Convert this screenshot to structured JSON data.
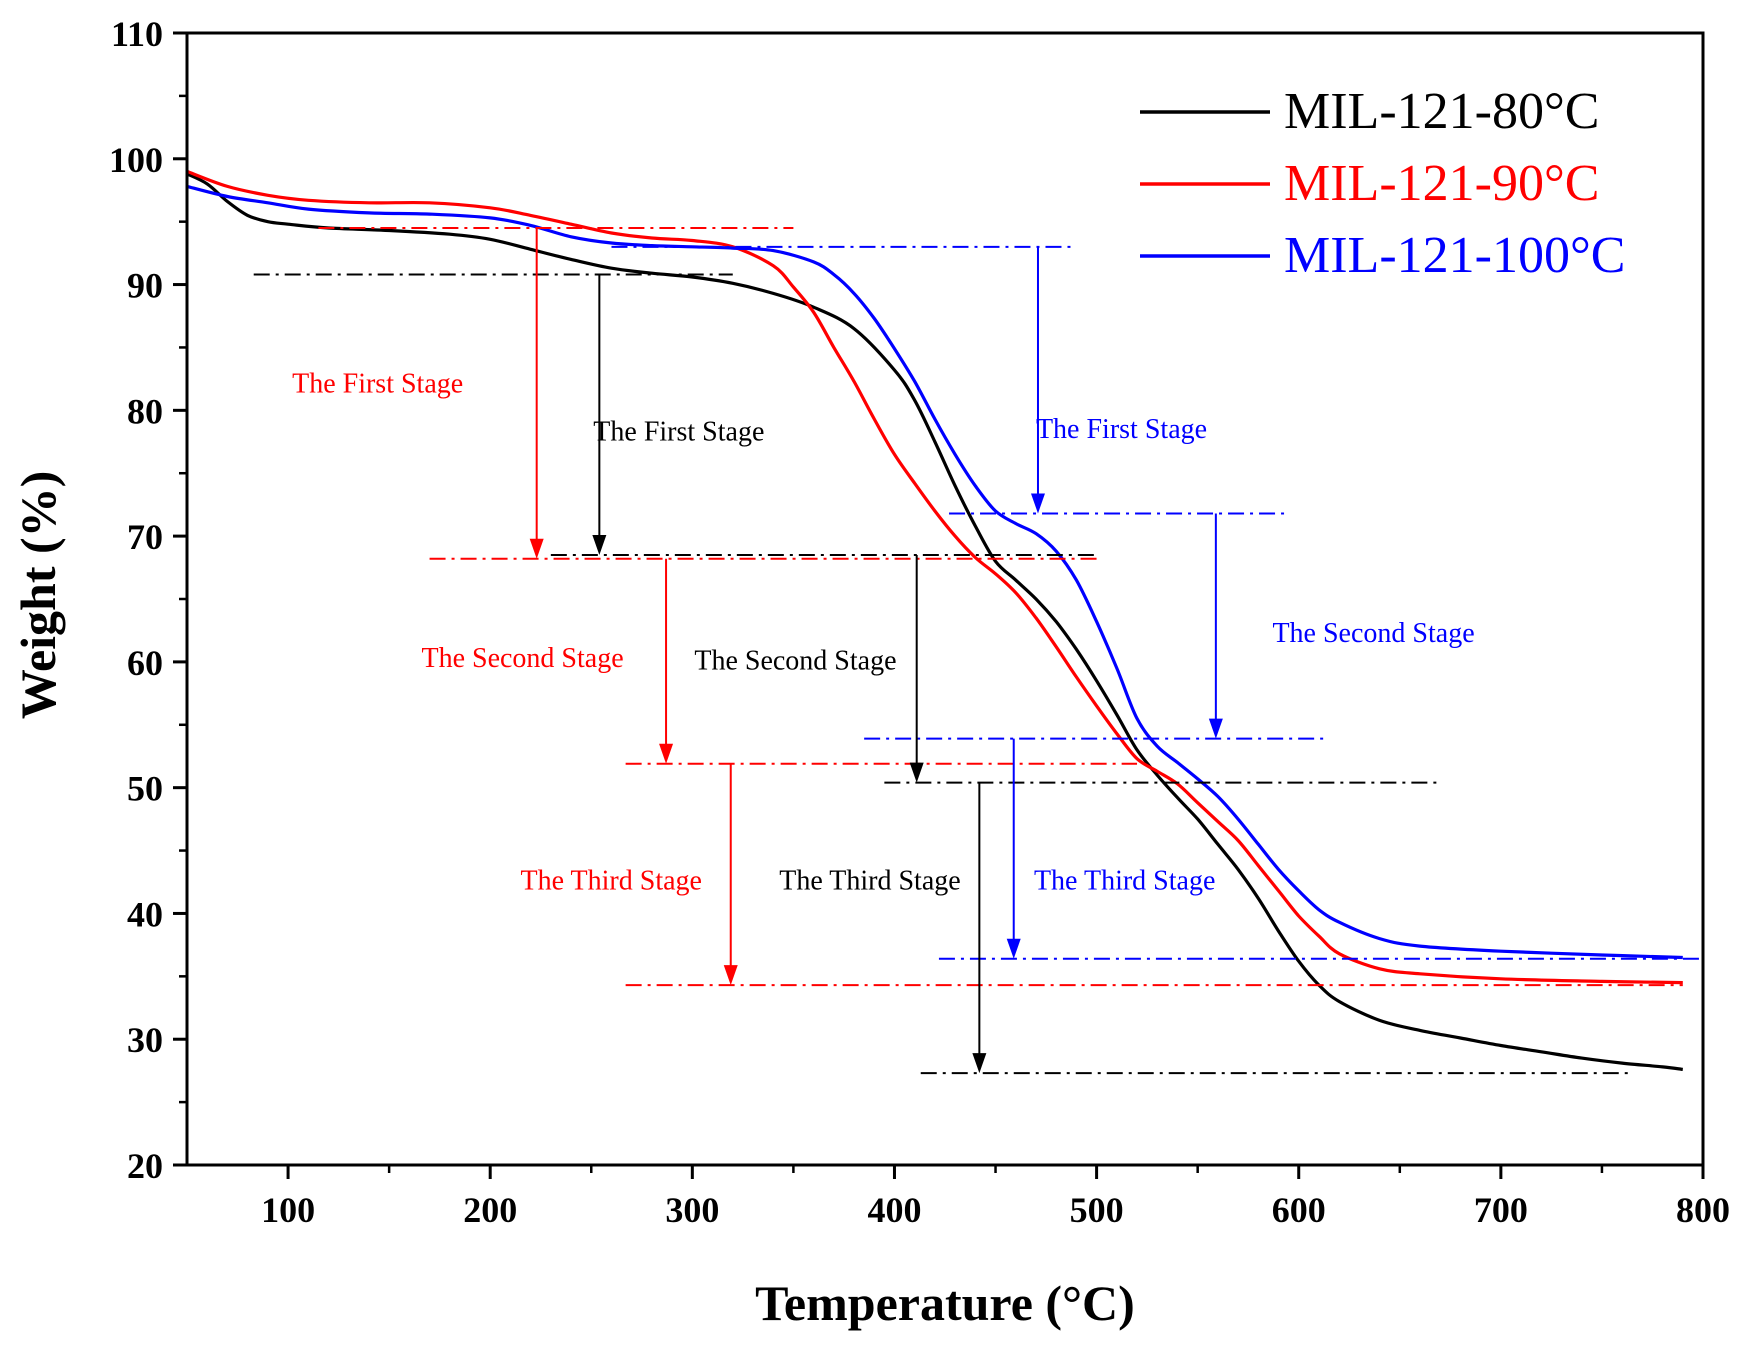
{
  "chart_data": {
    "type": "line",
    "xlabel": "Temperature (°C)",
    "ylabel": "Weight (%)",
    "xlim": [
      50,
      800
    ],
    "ylim": [
      20,
      110
    ],
    "xticks": [
      100,
      200,
      300,
      400,
      500,
      600,
      700,
      800
    ],
    "yticks": [
      20,
      30,
      40,
      50,
      60,
      70,
      80,
      90,
      100,
      110
    ],
    "grid": false,
    "legend_position": "top-right",
    "series": [
      {
        "name": "MIL-121-80°C",
        "color": "#000000",
        "points": [
          [
            50,
            98.8
          ],
          [
            60,
            98.0
          ],
          [
            70,
            96.6
          ],
          [
            80,
            95.5
          ],
          [
            90,
            95.0
          ],
          [
            100,
            94.8
          ],
          [
            120,
            94.5
          ],
          [
            150,
            94.3
          ],
          [
            180,
            94.0
          ],
          [
            200,
            93.6
          ],
          [
            220,
            92.8
          ],
          [
            240,
            92.0
          ],
          [
            260,
            91.3
          ],
          [
            280,
            90.9
          ],
          [
            300,
            90.6
          ],
          [
            320,
            90.1
          ],
          [
            340,
            89.3
          ],
          [
            360,
            88.2
          ],
          [
            380,
            86.5
          ],
          [
            400,
            83.2
          ],
          [
            410,
            80.8
          ],
          [
            420,
            77.5
          ],
          [
            430,
            74.0
          ],
          [
            440,
            70.8
          ],
          [
            450,
            68.0
          ],
          [
            460,
            66.5
          ],
          [
            470,
            65.0
          ],
          [
            480,
            63.2
          ],
          [
            490,
            61.0
          ],
          [
            500,
            58.5
          ],
          [
            510,
            55.8
          ],
          [
            520,
            53.0
          ],
          [
            530,
            51.0
          ],
          [
            540,
            49.2
          ],
          [
            550,
            47.5
          ],
          [
            560,
            45.5
          ],
          [
            570,
            43.5
          ],
          [
            580,
            41.2
          ],
          [
            590,
            38.6
          ],
          [
            600,
            36.2
          ],
          [
            610,
            34.3
          ],
          [
            620,
            33.0
          ],
          [
            640,
            31.5
          ],
          [
            660,
            30.7
          ],
          [
            680,
            30.1
          ],
          [
            700,
            29.5
          ],
          [
            720,
            29.0
          ],
          [
            740,
            28.5
          ],
          [
            760,
            28.1
          ],
          [
            780,
            27.8
          ],
          [
            790,
            27.6
          ]
        ]
      },
      {
        "name": "MIL-121-90°C",
        "color": "#ff0000",
        "points": [
          [
            50,
            99.0
          ],
          [
            70,
            97.8
          ],
          [
            90,
            97.1
          ],
          [
            110,
            96.7
          ],
          [
            140,
            96.5
          ],
          [
            170,
            96.5
          ],
          [
            200,
            96.1
          ],
          [
            220,
            95.5
          ],
          [
            240,
            94.8
          ],
          [
            260,
            94.1
          ],
          [
            280,
            93.7
          ],
          [
            300,
            93.5
          ],
          [
            320,
            93.0
          ],
          [
            340,
            91.5
          ],
          [
            350,
            89.8
          ],
          [
            360,
            87.8
          ],
          [
            370,
            85.0
          ],
          [
            380,
            82.3
          ],
          [
            390,
            79.3
          ],
          [
            400,
            76.5
          ],
          [
            410,
            74.2
          ],
          [
            420,
            72.0
          ],
          [
            430,
            70.0
          ],
          [
            440,
            68.3
          ],
          [
            450,
            67.0
          ],
          [
            460,
            65.5
          ],
          [
            470,
            63.5
          ],
          [
            480,
            61.2
          ],
          [
            490,
            58.8
          ],
          [
            500,
            56.5
          ],
          [
            510,
            54.3
          ],
          [
            520,
            52.3
          ],
          [
            530,
            51.3
          ],
          [
            540,
            50.3
          ],
          [
            550,
            48.8
          ],
          [
            560,
            47.3
          ],
          [
            570,
            45.8
          ],
          [
            580,
            43.8
          ],
          [
            590,
            41.8
          ],
          [
            600,
            39.8
          ],
          [
            610,
            38.2
          ],
          [
            620,
            36.8
          ],
          [
            640,
            35.6
          ],
          [
            660,
            35.2
          ],
          [
            700,
            34.8
          ],
          [
            750,
            34.6
          ],
          [
            790,
            34.5
          ]
        ]
      },
      {
        "name": "MIL-121-100°C",
        "color": "#0000ff",
        "points": [
          [
            50,
            97.8
          ],
          [
            70,
            97.0
          ],
          [
            90,
            96.5
          ],
          [
            110,
            96.0
          ],
          [
            140,
            95.7
          ],
          [
            170,
            95.6
          ],
          [
            200,
            95.3
          ],
          [
            220,
            94.7
          ],
          [
            240,
            93.8
          ],
          [
            260,
            93.3
          ],
          [
            280,
            93.1
          ],
          [
            300,
            93.0
          ],
          [
            320,
            92.9
          ],
          [
            340,
            92.7
          ],
          [
            360,
            91.8
          ],
          [
            370,
            90.8
          ],
          [
            380,
            89.3
          ],
          [
            390,
            87.3
          ],
          [
            400,
            84.9
          ],
          [
            410,
            82.3
          ],
          [
            420,
            79.3
          ],
          [
            430,
            76.5
          ],
          [
            440,
            74.0
          ],
          [
            450,
            72.0
          ],
          [
            460,
            71.0
          ],
          [
            470,
            70.2
          ],
          [
            480,
            68.8
          ],
          [
            490,
            66.5
          ],
          [
            500,
            63.2
          ],
          [
            510,
            59.5
          ],
          [
            520,
            55.5
          ],
          [
            530,
            53.3
          ],
          [
            540,
            52.0
          ],
          [
            550,
            50.7
          ],
          [
            560,
            49.3
          ],
          [
            570,
            47.5
          ],
          [
            580,
            45.5
          ],
          [
            590,
            43.5
          ],
          [
            600,
            41.8
          ],
          [
            610,
            40.3
          ],
          [
            620,
            39.3
          ],
          [
            640,
            38.0
          ],
          [
            660,
            37.4
          ],
          [
            700,
            37.0
          ],
          [
            750,
            36.7
          ],
          [
            790,
            36.5
          ]
        ]
      }
    ],
    "reference_lines": [
      {
        "color": "#ff0000",
        "y": 94.5,
        "x": [
          115,
          350
        ]
      },
      {
        "color": "#000000",
        "y": 90.8,
        "x": [
          83,
          320
        ]
      },
      {
        "color": "#0000ff",
        "y": 93.0,
        "x": [
          260,
          490
        ]
      },
      {
        "color": "#000000",
        "y": 68.5,
        "x": [
          230,
          500
        ]
      },
      {
        "color": "#ff0000",
        "y": 68.2,
        "x": [
          170,
          500
        ]
      },
      {
        "color": "#0000ff",
        "y": 71.8,
        "x": [
          427,
          593
        ]
      },
      {
        "color": "#0000ff",
        "y": 53.9,
        "x": [
          385,
          615
        ]
      },
      {
        "color": "#ff0000",
        "y": 51.9,
        "x": [
          267,
          520
        ]
      },
      {
        "color": "#000000",
        "y": 50.4,
        "x": [
          395,
          670
        ]
      },
      {
        "color": "#0000ff",
        "y": 36.4,
        "x": [
          422,
          800
        ]
      },
      {
        "color": "#ff0000",
        "y": 34.3,
        "x": [
          267,
          790
        ]
      },
      {
        "color": "#000000",
        "y": 27.3,
        "x": [
          413,
          765
        ]
      }
    ],
    "arrows": [
      {
        "color": "#ff0000",
        "x": 223,
        "from": 94.5,
        "to": 68.2
      },
      {
        "color": "#000000",
        "x": 254,
        "from": 90.8,
        "to": 68.5
      },
      {
        "color": "#0000ff",
        "x": 471,
        "from": 93.0,
        "to": 71.8
      },
      {
        "color": "#ff0000",
        "x": 287,
        "from": 68.2,
        "to": 51.9
      },
      {
        "color": "#000000",
        "x": 411,
        "from": 68.5,
        "to": 50.4
      },
      {
        "color": "#0000ff",
        "x": 559,
        "from": 71.8,
        "to": 53.9
      },
      {
        "color": "#ff0000",
        "x": 319,
        "from": 51.9,
        "to": 34.3
      },
      {
        "color": "#000000",
        "x": 442,
        "from": 50.4,
        "to": 27.3
      },
      {
        "color": "#0000ff",
        "x": 459,
        "from": 53.9,
        "to": 36.4
      }
    ],
    "annotations": [
      {
        "text": "The First Stage",
        "color": "#ff0000",
        "x": 102,
        "y": 81.4
      },
      {
        "text": "The First Stage",
        "color": "#000000",
        "x": 251,
        "y": 77.6
      },
      {
        "text": "The First Stage",
        "color": "#0000ff",
        "x": 470,
        "y": 77.8
      },
      {
        "text": "The Second Stage",
        "color": "#ff0000",
        "x": 166,
        "y": 59.6
      },
      {
        "text": "The Second Stage",
        "color": "#000000",
        "x": 301,
        "y": 59.4
      },
      {
        "text": "The Second Stage",
        "color": "#0000ff",
        "x": 587,
        "y": 61.6
      },
      {
        "text": "The Third Stage",
        "color": "#ff0000",
        "x": 215,
        "y": 41.9
      },
      {
        "text": "The Third Stage",
        "color": "#000000",
        "x": 343,
        "y": 41.9
      },
      {
        "text": "The Third Stage",
        "color": "#0000ff",
        "x": 469,
        "y": 41.9
      }
    ]
  }
}
